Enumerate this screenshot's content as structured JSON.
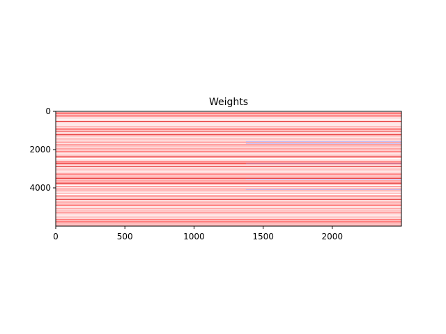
{
  "chart_data": {
    "type": "heatmap",
    "title": "Weights",
    "xlabel": "",
    "ylabel": "",
    "xlim": [
      0,
      2500
    ],
    "ylim": [
      6000,
      0
    ],
    "y_axis_inverted": true,
    "x_ticks": [
      0,
      500,
      1000,
      1500,
      2000
    ],
    "x_tick_labels": [
      "0",
      "500",
      "1000",
      "1500",
      "2000"
    ],
    "y_ticks": [
      0,
      2000,
      4000
    ],
    "y_tick_labels": [
      "0",
      "2000",
      "4000"
    ],
    "grid": false,
    "colormap": "bwr",
    "colors": {
      "negative": "#0000ff",
      "zero": "#ffffff",
      "positive": "#ff0000"
    },
    "rows_approx": 6000,
    "cols_approx": 2500,
    "description": "dense horizontal striations, predominantly light-to-medium red with sparse faint blue lines toward the right"
  }
}
